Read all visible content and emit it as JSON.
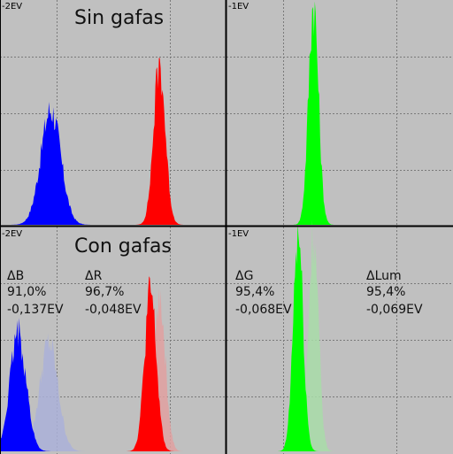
{
  "chart_data": {
    "type": "area",
    "panels": [
      {
        "id": "top-left",
        "ev_label": "-2EV",
        "title": "Sin gafas",
        "series": [
          {
            "color": "#0000ff",
            "peak_x": 0.112,
            "spread": 0.022,
            "height": 0.52,
            "style": "solid"
          },
          {
            "color": "#ff0000",
            "peak_x": 0.352,
            "spread": 0.013,
            "height": 0.72,
            "style": "solid"
          }
        ],
        "stats": []
      },
      {
        "id": "top-right",
        "ev_label": "-1EV",
        "title": "",
        "series": [
          {
            "color": "#00ff00",
            "peak_x": 0.692,
            "spread": 0.011,
            "height": 1.0,
            "style": "solid"
          }
        ],
        "stats": []
      },
      {
        "id": "bottom-left",
        "ev_label": "-2EV",
        "title": "Con gafas",
        "series": [
          {
            "color": "#aab0d8",
            "peak_x": 0.108,
            "spread": 0.02,
            "height": 0.49,
            "style": "faded"
          },
          {
            "color": "#0000ff",
            "peak_x": 0.04,
            "spread": 0.018,
            "height": 0.53,
            "style": "solid"
          },
          {
            "color": "#e0a0a0",
            "peak_x": 0.352,
            "spread": 0.013,
            "height": 0.7,
            "style": "faded"
          },
          {
            "color": "#ff0000",
            "peak_x": 0.332,
            "spread": 0.013,
            "height": 0.72,
            "style": "solid"
          }
        ],
        "stats": [
          {
            "label": "ΔB",
            "pct": "91,0%",
            "ev": "-0,137EV"
          },
          {
            "label": "ΔR",
            "pct": "96,7%",
            "ev": "-0,048EV"
          }
        ]
      },
      {
        "id": "bottom-right",
        "ev_label": "-1EV",
        "title": "",
        "series": [
          {
            "color": "#a8dca8",
            "peak_x": 0.692,
            "spread": 0.011,
            "height": 0.98,
            "style": "faded"
          },
          {
            "color": "#00ff00",
            "peak_x": 0.658,
            "spread": 0.011,
            "height": 0.98,
            "style": "solid"
          }
        ],
        "stats": [
          {
            "label": "ΔG",
            "pct": "95,4%",
            "ev": "-0,068EV"
          },
          {
            "label": "ΔLum",
            "pct": "95,4%",
            "ev": "-0,069EV"
          }
        ]
      }
    ]
  }
}
